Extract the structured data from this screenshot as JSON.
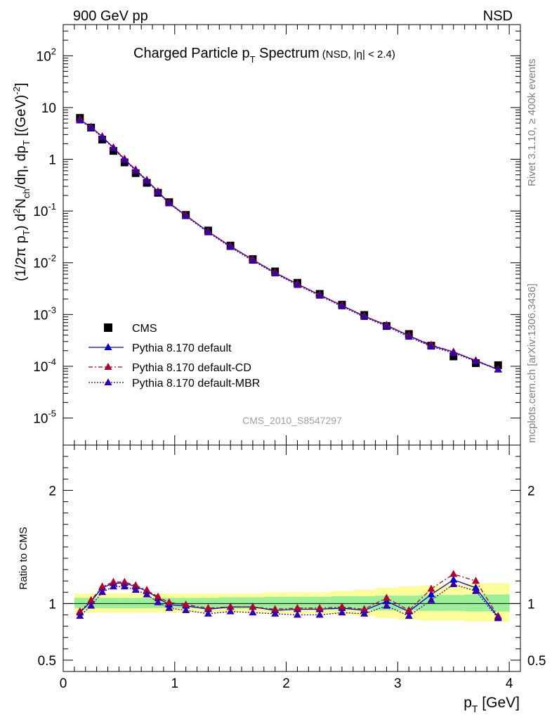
{
  "header": {
    "left": "900 GeV pp",
    "right": "NSD"
  },
  "side_labels": {
    "rivet": "Rivet 3.1.10, ≥ 400k events",
    "mcplots": "mcplots.cern.ch [arXiv:1306.3436]"
  },
  "colors": {
    "cms": "#000000",
    "default": "#0000cc",
    "cd": "#b2002a",
    "mbr": "#3300aa",
    "band_inner": "#99f099",
    "band_outer": "#fdfd9a"
  },
  "chart_data": [
    {
      "type": "scatter",
      "panel": "main",
      "title_main": "Charged Particle p",
      "title_sub": "T",
      "title_tail": " Spectrum",
      "title_extra": "(NSD, |η| < 2.4)",
      "watermark": "CMS_2010_S8547297",
      "yscale": "log",
      "xlim": [
        0,
        4.1
      ],
      "ylim": [
        3e-06,
        400
      ],
      "ylabel": "(1/2π pT) d²Nch/dη, dpT [(GeV)⁻²]",
      "ylabel_parts": {
        "p1": "(1/2π p",
        "p1s": "T",
        "p2": ") d",
        "p2sup": "2",
        "p3": "N",
        "p3s": "ch",
        "p4": "/dη, dp",
        "p4s": "T",
        "p5": " [(GeV)",
        "p5sup": "-2",
        "p6": "]"
      },
      "ytick_labels": [
        "10⁻⁵",
        "10⁻⁴",
        "10⁻³",
        "10⁻²",
        "10⁻¹",
        "1",
        "10",
        "10²"
      ],
      "ytick_values": [
        1e-05,
        0.0001,
        0.001,
        0.01,
        0.1,
        1,
        10,
        100
      ],
      "ytick_disp": [
        {
          "base": "10",
          "exp": "-5"
        },
        {
          "base": "10",
          "exp": "-4"
        },
        {
          "base": "10",
          "exp": "-3"
        },
        {
          "base": "10",
          "exp": "-2"
        },
        {
          "base": "10",
          "exp": "-1"
        },
        {
          "base": "1",
          "exp": ""
        },
        {
          "base": "10",
          "exp": ""
        },
        {
          "base": "10",
          "exp": "2"
        }
      ],
      "x": [
        0.15,
        0.25,
        0.35,
        0.45,
        0.55,
        0.65,
        0.75,
        0.85,
        0.95,
        1.1,
        1.3,
        1.5,
        1.7,
        1.9,
        2.1,
        2.3,
        2.5,
        2.7,
        2.9,
        3.1,
        3.3,
        3.5,
        3.7,
        3.9
      ],
      "series": [
        {
          "name": "CMS",
          "key": "cms",
          "marker": "square",
          "line": "none",
          "values": [
            6.3,
            4.1,
            2.4,
            1.45,
            0.87,
            0.54,
            0.35,
            0.225,
            0.148,
            0.084,
            0.042,
            0.0215,
            0.0118,
            0.0068,
            0.0041,
            0.0025,
            0.00155,
            0.00098,
            0.0006,
            0.00042,
            0.00025,
            0.000155,
            0.000115,
            0.000105
          ]
        },
        {
          "name": "Pythia 8.170 default",
          "key": "default",
          "marker": "triangle",
          "line": "solid",
          "values": [
            5.8,
            4.2,
            2.75,
            1.67,
            1.0,
            0.62,
            0.39,
            0.237,
            0.142,
            0.082,
            0.04,
            0.0208,
            0.0115,
            0.0064,
            0.0039,
            0.0024,
            0.0015,
            0.00093,
            0.00062,
            0.00039,
            0.00025,
            0.00019,
            0.000128,
            8.7e-05
          ]
        },
        {
          "name": "Pythia 8.170 default-CD",
          "key": "cd",
          "marker": "triangle",
          "line": "dashdot",
          "values": [
            5.9,
            4.2,
            2.75,
            1.69,
            1.02,
            0.63,
            0.4,
            0.24,
            0.145,
            0.083,
            0.04,
            0.021,
            0.0115,
            0.0065,
            0.0039,
            0.0024,
            0.0015,
            0.00093,
            0.00063,
            0.00039,
            0.00026,
            0.00019,
            0.00013,
            8.8e-05
          ]
        },
        {
          "name": "Pythia 8.170 default-MBR",
          "key": "mbr",
          "marker": "triangle",
          "line": "dotted",
          "values": [
            5.6,
            4.05,
            2.65,
            1.62,
            0.97,
            0.6,
            0.38,
            0.23,
            0.14,
            0.079,
            0.0385,
            0.02,
            0.0109,
            0.0062,
            0.0037,
            0.0023,
            0.00143,
            0.00089,
            0.00059,
            0.00037,
            0.00024,
            0.00018,
            0.000125,
            8.6e-05
          ]
        }
      ]
    },
    {
      "type": "line",
      "panel": "ratio",
      "ylabel": "Ratio to CMS",
      "xlabel_main": "p",
      "xlabel_sub": "T",
      "xlabel_tail": " [GeV]",
      "xlim": [
        0,
        4.1
      ],
      "ylim": [
        0.4,
        2.4
      ],
      "ytick_values": [
        0.5,
        1,
        2
      ],
      "ytick_labels": [
        "0.5",
        "1",
        "2"
      ],
      "xtick_values": [
        0,
        1,
        2,
        3,
        4
      ],
      "xtick_labels": [
        "0",
        "1",
        "2",
        "3",
        "4"
      ],
      "x": [
        0.15,
        0.25,
        0.35,
        0.45,
        0.55,
        0.65,
        0.75,
        0.85,
        0.95,
        1.1,
        1.3,
        1.5,
        1.7,
        1.9,
        2.1,
        2.3,
        2.5,
        2.7,
        2.9,
        3.1,
        3.3,
        3.5,
        3.7,
        3.9
      ],
      "band_edges": [
        0.1,
        0.2,
        0.3,
        0.4,
        0.5,
        0.6,
        0.7,
        0.8,
        0.9,
        1.0,
        1.2,
        1.4,
        1.6,
        1.8,
        2.0,
        2.2,
        2.4,
        2.6,
        2.8,
        3.0,
        3.2,
        3.4,
        3.6,
        3.8,
        4.0
      ],
      "band_inner_up": [
        1.05,
        1.05,
        1.05,
        1.05,
        1.05,
        1.05,
        1.05,
        1.05,
        1.05,
        1.05,
        1.05,
        1.055,
        1.055,
        1.06,
        1.06,
        1.06,
        1.065,
        1.065,
        1.07,
        1.07,
        1.075,
        1.075,
        1.08,
        1.08
      ],
      "band_inner_dn": [
        0.96,
        0.96,
        0.96,
        0.96,
        0.96,
        0.96,
        0.96,
        0.96,
        0.96,
        0.96,
        0.96,
        0.955,
        0.955,
        0.95,
        0.95,
        0.95,
        0.945,
        0.945,
        0.94,
        0.94,
        0.935,
        0.935,
        0.93,
        0.93
      ],
      "band_outer_up": [
        1.09,
        1.09,
        1.09,
        1.09,
        1.09,
        1.09,
        1.09,
        1.09,
        1.09,
        1.09,
        1.09,
        1.09,
        1.09,
        1.1,
        1.1,
        1.1,
        1.11,
        1.12,
        1.14,
        1.15,
        1.16,
        1.17,
        1.18,
        1.18
      ],
      "band_outer_dn": [
        0.92,
        0.92,
        0.92,
        0.92,
        0.92,
        0.92,
        0.92,
        0.92,
        0.92,
        0.92,
        0.92,
        0.92,
        0.92,
        0.91,
        0.91,
        0.91,
        0.9,
        0.89,
        0.87,
        0.86,
        0.85,
        0.85,
        0.84,
        0.84
      ],
      "series": [
        {
          "name": "Pythia 8.170 default",
          "key": "default",
          "values": [
            0.92,
            1.02,
            1.14,
            1.18,
            1.18,
            1.15,
            1.11,
            1.05,
            0.99,
            0.98,
            0.95,
            0.97,
            0.97,
            0.94,
            0.95,
            0.95,
            0.96,
            0.94,
            1.02,
            0.93,
            1.08,
            1.21,
            1.14,
            0.88
          ]
        },
        {
          "name": "Pythia 8.170 default-CD",
          "key": "cd",
          "values": [
            0.93,
            1.03,
            1.15,
            1.19,
            1.19,
            1.16,
            1.12,
            1.06,
            1.01,
            0.99,
            0.96,
            0.97,
            0.97,
            0.95,
            0.96,
            0.96,
            0.97,
            0.95,
            1.05,
            0.94,
            1.13,
            1.26,
            1.2,
            0.89
          ]
        },
        {
          "name": "Pythia 8.170 default-MBR",
          "key": "mbr",
          "values": [
            0.89,
            0.98,
            1.1,
            1.15,
            1.15,
            1.12,
            1.08,
            1.01,
            0.96,
            0.94,
            0.91,
            0.93,
            0.92,
            0.91,
            0.9,
            0.9,
            0.92,
            0.91,
            0.98,
            0.89,
            1.03,
            1.17,
            1.11,
            0.87
          ]
        }
      ]
    }
  ]
}
